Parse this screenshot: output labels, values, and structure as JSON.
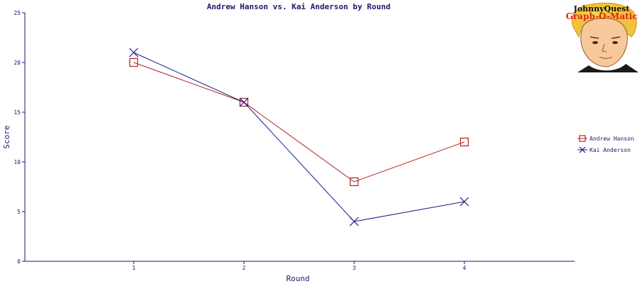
{
  "chart_data": {
    "type": "line",
    "title": "Andrew Hanson vs. Kai Anderson by Round",
    "xlabel": "Round",
    "ylabel": "Score",
    "categories": [
      "1",
      "2",
      "3",
      "4"
    ],
    "ylim": [
      0,
      25
    ],
    "yticks": [
      "0",
      "5",
      "10",
      "15",
      "20",
      "25"
    ],
    "grid": false,
    "legend_position": "right",
    "series": [
      {
        "name": "Andrew Hanson",
        "values": [
          20,
          16,
          8,
          12
        ],
        "color": "#b22222",
        "marker": "square"
      },
      {
        "name": "Kai Anderson",
        "values": [
          21,
          16,
          4,
          6
        ],
        "color": "#1a1a8c",
        "marker": "x"
      }
    ]
  },
  "logo": {
    "line1": "JohnnyQuest",
    "line2": "Graph-O-Matic"
  }
}
